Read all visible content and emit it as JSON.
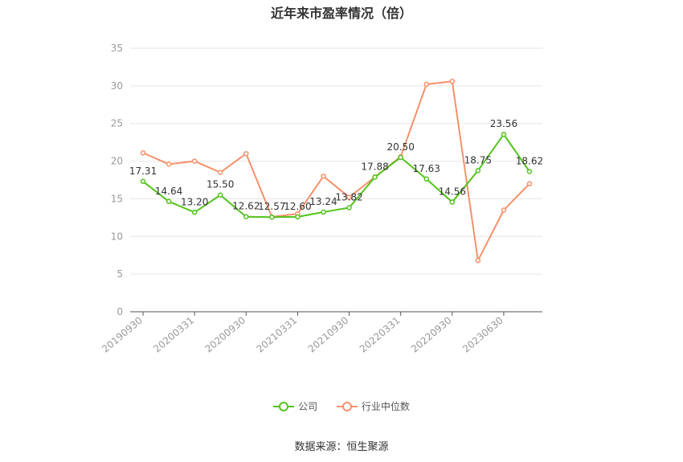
{
  "chart_data": {
    "type": "line",
    "title": "近年来市盈率情况（倍）",
    "x_tick_labels": [
      "20190930",
      "20200331",
      "20200930",
      "20210331",
      "20210930",
      "20220331",
      "20220930",
      "20230630"
    ],
    "ylim": [
      0,
      35
    ],
    "yticks": [
      0,
      5,
      10,
      15,
      20,
      25,
      30,
      35
    ],
    "grid": true,
    "legend_position": "bottom",
    "series": [
      {
        "name": "公司",
        "color": "#52c41a",
        "values": [
          17.31,
          14.64,
          13.2,
          15.5,
          12.62,
          12.57,
          12.6,
          13.24,
          13.82,
          17.88,
          20.5,
          17.63,
          14.56,
          18.75,
          23.56,
          18.62
        ],
        "labels": [
          "17.31",
          "14.64",
          "13.20",
          "15.50",
          "12.62",
          "12.57",
          "12.60",
          "13.24",
          "13.82",
          "17.88",
          "20.50",
          "17.63",
          "14.56",
          "18.75",
          "23.56",
          "18.62"
        ]
      },
      {
        "name": "行业中位数",
        "color": "#f5916a",
        "values": [
          21.1,
          19.6,
          20.0,
          18.5,
          21.0,
          12.6,
          13.0,
          18.0,
          15.2,
          17.9,
          20.6,
          30.2,
          30.6,
          6.8,
          13.5,
          17.0
        ]
      }
    ]
  },
  "legend": {
    "company_label": "公司",
    "industry_label": "行业中位数"
  },
  "source_text": "数据来源：恒生聚源"
}
